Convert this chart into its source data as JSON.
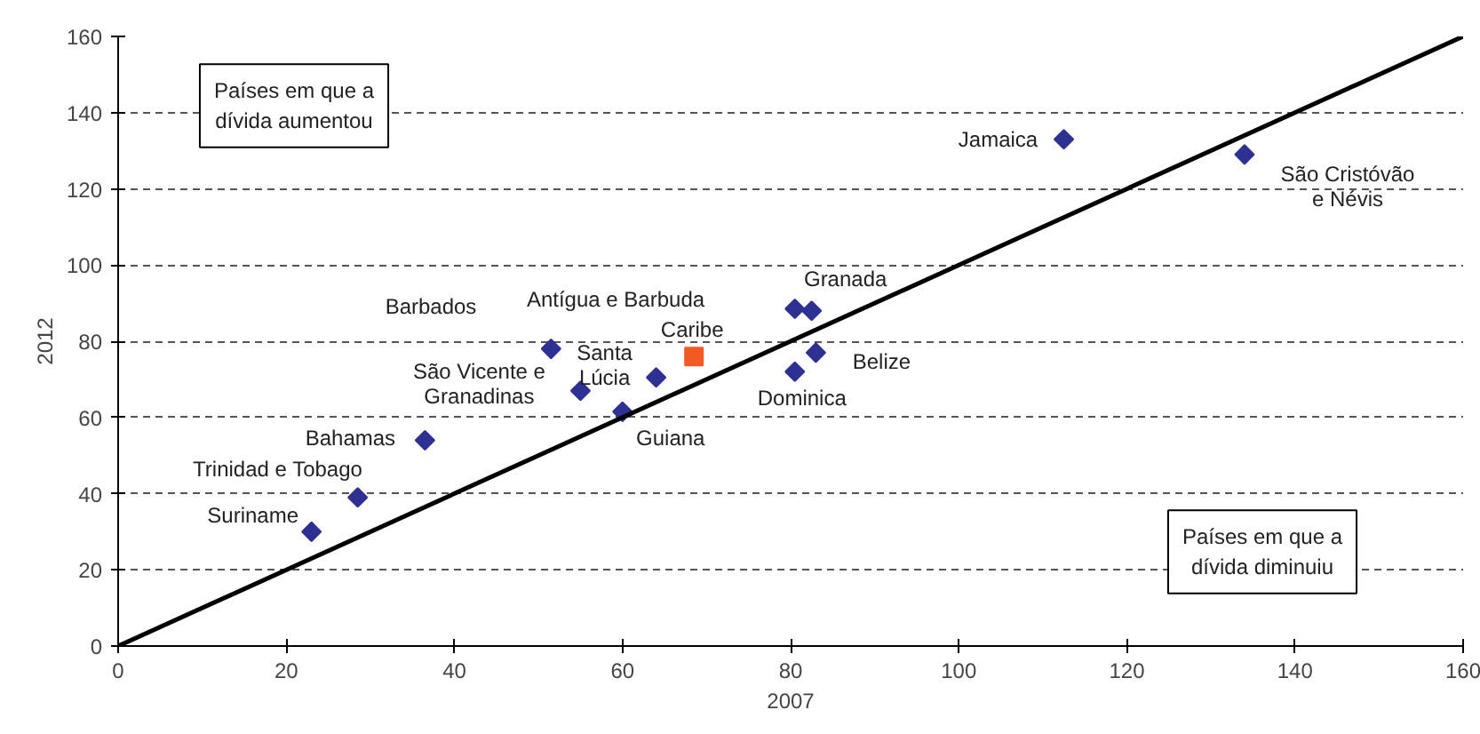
{
  "chart_data": {
    "type": "scatter",
    "xlabel": "2007",
    "ylabel": "2012",
    "xlim": [
      0,
      160
    ],
    "ylim": [
      0,
      160
    ],
    "xticks": [
      0,
      20,
      40,
      60,
      80,
      100,
      120,
      140,
      160
    ],
    "yticks": [
      0,
      20,
      40,
      60,
      80,
      100,
      120,
      140,
      160
    ],
    "grid": "y",
    "legend": false,
    "series": [
      {
        "color": "#2e3192",
        "marker": "diamond",
        "x": [
          23,
          28.5,
          36.5,
          51.5,
          55,
          60,
          64,
          80.5,
          82.5,
          83,
          80.5,
          112.5,
          134
        ],
        "values": [
          30,
          39,
          54,
          78,
          67,
          61.5,
          70.5,
          88.5,
          88,
          77,
          72,
          133,
          129
        ]
      },
      {
        "color": "#f15a22",
        "marker": "square",
        "x": [
          68.5
        ],
        "values": [
          76
        ]
      },
      {
        "type": "line",
        "color": "#000000",
        "x": [
          0,
          160
        ],
        "values": [
          0,
          160
        ]
      }
    ],
    "annotations": [
      {
        "text": "Suriname",
        "x": 23,
        "y": 30
      },
      {
        "text": "Trinidad e Tobago",
        "x": 28.5,
        "y": 39
      },
      {
        "text": "Bahamas",
        "x": 36.5,
        "y": 54
      },
      {
        "text": "São Vicente e\nGranadinas",
        "x": 55,
        "y": 67
      },
      {
        "text": "Guiana",
        "x": 60,
        "y": 61.5
      },
      {
        "text": "Santa\nLúcia",
        "x": 64,
        "y": 70.5
      },
      {
        "text": "Granada",
        "x": 82.5,
        "y": 88
      },
      {
        "text": "Belize",
        "x": 83,
        "y": 77
      },
      {
        "text": "Dominica",
        "x": 80.5,
        "y": 72
      },
      {
        "text": "Jamaica",
        "x": 112.5,
        "y": 133
      },
      {
        "text": "São Cristóvão\ne Névis",
        "x": 134,
        "y": 129
      },
      {
        "text": "Caribe",
        "x": 68.5,
        "y": 76
      },
      "Barbados",
      "Antígua e Barbuda",
      "Países em que a\ndívida aumentou",
      "Países em que a\ndívida diminuiu"
    ]
  }
}
